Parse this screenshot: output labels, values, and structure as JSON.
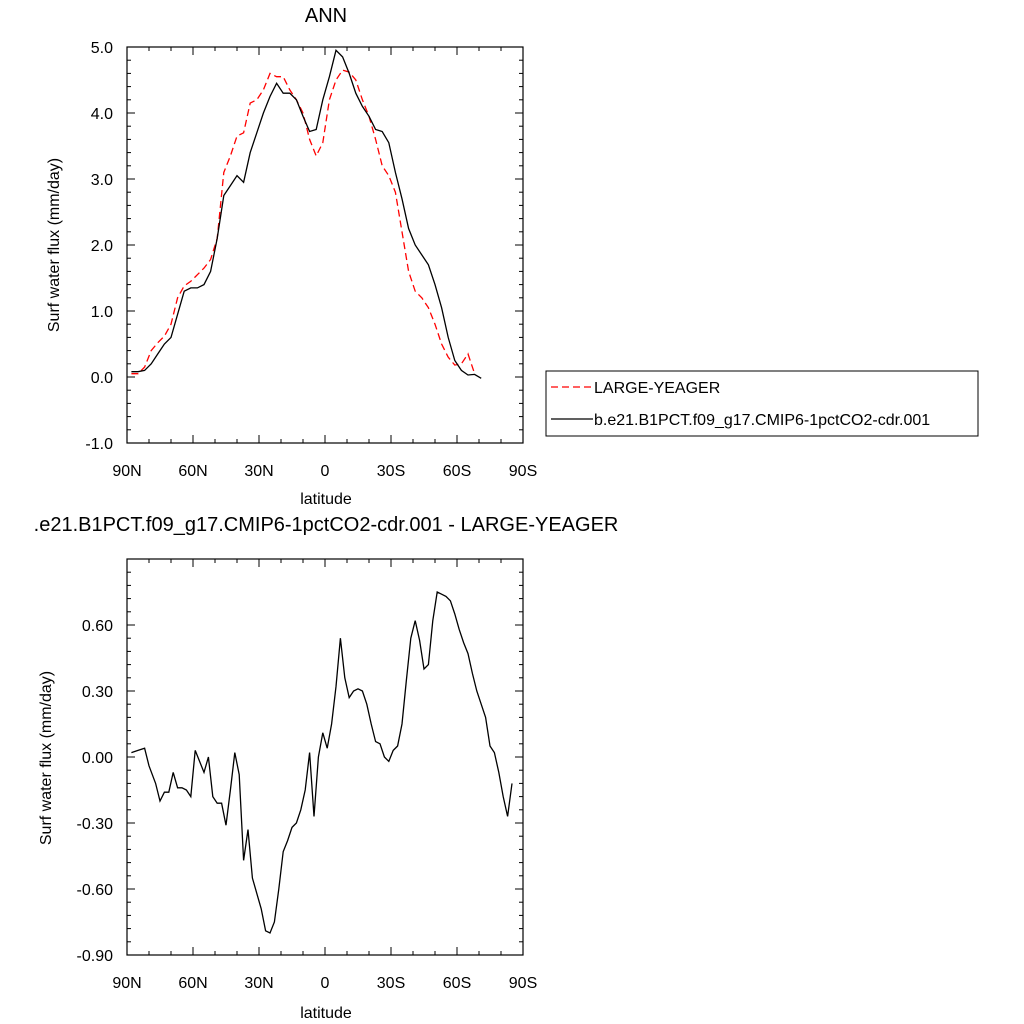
{
  "chart_data": [
    {
      "type": "line",
      "title": "ANN",
      "xlabel": "latitude",
      "ylabel": "Surf water flux (mm/day)",
      "xlim": [
        90,
        -90
      ],
      "ylim": [
        -1.0,
        5.0
      ],
      "x_ticks": [
        90,
        60,
        30,
        0,
        -30,
        -60,
        -90
      ],
      "x_tick_labels": [
        "90N",
        "60N",
        "30N",
        "0",
        "30S",
        "60S",
        "90S"
      ],
      "y_ticks": [
        -1.0,
        0.0,
        1.0,
        2.0,
        3.0,
        4.0,
        5.0
      ],
      "y_tick_labels": [
        "-1.0",
        "0.0",
        "1.0",
        "2.0",
        "3.0",
        "4.0",
        "5.0"
      ],
      "grid": false,
      "legend_position": "right",
      "series": [
        {
          "name": "LARGE-YEAGER",
          "color": "#ff0000",
          "dash": "dashed",
          "points": [
            [
              88,
              0.05
            ],
            [
              85,
              0.05
            ],
            [
              82,
              0.15
            ],
            [
              79,
              0.4
            ],
            [
              76,
              0.52
            ],
            [
              73,
              0.62
            ],
            [
              70,
              0.8
            ],
            [
              67,
              1.2
            ],
            [
              64,
              1.38
            ],
            [
              61,
              1.45
            ],
            [
              58,
              1.55
            ],
            [
              55,
              1.65
            ],
            [
              52,
              1.78
            ],
            [
              49,
              2.1
            ],
            [
              46,
              3.1
            ],
            [
              43,
              3.35
            ],
            [
              40,
              3.65
            ],
            [
              37,
              3.7
            ],
            [
              34,
              4.15
            ],
            [
              31,
              4.2
            ],
            [
              28,
              4.35
            ],
            [
              25,
              4.6
            ],
            [
              22,
              4.55
            ],
            [
              19,
              4.55
            ],
            [
              16,
              4.35
            ],
            [
              13,
              4.2
            ],
            [
              10,
              4.0
            ],
            [
              7,
              3.6
            ],
            [
              4,
              3.35
            ],
            [
              1,
              3.55
            ],
            [
              -2,
              4.2
            ],
            [
              -5,
              4.5
            ],
            [
              -8,
              4.65
            ],
            [
              -11,
              4.62
            ],
            [
              -14,
              4.5
            ],
            [
              -17,
              4.2
            ],
            [
              -20,
              3.95
            ],
            [
              -23,
              3.6
            ],
            [
              -26,
              3.2
            ],
            [
              -29,
              3.05
            ],
            [
              -32,
              2.8
            ],
            [
              -35,
              2.2
            ],
            [
              -38,
              1.6
            ],
            [
              -41,
              1.3
            ],
            [
              -44,
              1.2
            ],
            [
              -47,
              1.05
            ],
            [
              -50,
              0.8
            ],
            [
              -53,
              0.5
            ],
            [
              -56,
              0.3
            ],
            [
              -59,
              0.18
            ],
            [
              -62,
              0.2
            ],
            [
              -65,
              0.35
            ],
            [
              -68,
              0.05
            ]
          ]
        },
        {
          "name": "b.e21.B1PCT.f09_g17.CMIP6-1pctCO2-cdr.001",
          "color": "#000000",
          "dash": "solid",
          "points": [
            [
              88,
              0.08
            ],
            [
              85,
              0.08
            ],
            [
              82,
              0.1
            ],
            [
              79,
              0.2
            ],
            [
              76,
              0.35
            ],
            [
              73,
              0.5
            ],
            [
              70,
              0.6
            ],
            [
              67,
              0.95
            ],
            [
              64,
              1.3
            ],
            [
              61,
              1.35
            ],
            [
              58,
              1.35
            ],
            [
              55,
              1.4
            ],
            [
              52,
              1.6
            ],
            [
              49,
              2.1
            ],
            [
              46,
              2.75
            ],
            [
              43,
              2.9
            ],
            [
              40,
              3.05
            ],
            [
              37,
              2.95
            ],
            [
              34,
              3.4
            ],
            [
              31,
              3.7
            ],
            [
              28,
              4.0
            ],
            [
              25,
              4.25
            ],
            [
              22,
              4.45
            ],
            [
              19,
              4.3
            ],
            [
              16,
              4.3
            ],
            [
              13,
              4.2
            ],
            [
              10,
              3.95
            ],
            [
              7,
              3.72
            ],
            [
              4,
              3.75
            ],
            [
              1,
              4.2
            ],
            [
              -2,
              4.55
            ],
            [
              -5,
              4.95
            ],
            [
              -8,
              4.85
            ],
            [
              -11,
              4.6
            ],
            [
              -14,
              4.3
            ],
            [
              -17,
              4.1
            ],
            [
              -20,
              3.95
            ],
            [
              -23,
              3.75
            ],
            [
              -26,
              3.72
            ],
            [
              -29,
              3.55
            ],
            [
              -32,
              3.1
            ],
            [
              -35,
              2.7
            ],
            [
              -38,
              2.25
            ],
            [
              -41,
              2.0
            ],
            [
              -44,
              1.85
            ],
            [
              -47,
              1.7
            ],
            [
              -50,
              1.4
            ],
            [
              -53,
              1.05
            ],
            [
              -56,
              0.6
            ],
            [
              -59,
              0.25
            ],
            [
              -62,
              0.1
            ],
            [
              -65,
              0.03
            ],
            [
              -68,
              0.04
            ],
            [
              -71,
              -0.02
            ]
          ]
        }
      ]
    },
    {
      "type": "line",
      "title": ".e21.B1PCT.f09_g17.CMIP6-1pctCO2-cdr.001 - LARGE-YEAGER",
      "xlabel": "latitude",
      "ylabel": "Surf water flux (mm/day)",
      "xlim": [
        90,
        -90
      ],
      "ylim": [
        -0.9,
        0.9
      ],
      "x_ticks": [
        90,
        60,
        30,
        0,
        -30,
        -60,
        -90
      ],
      "x_tick_labels": [
        "90N",
        "60N",
        "30N",
        "0",
        "30S",
        "60S",
        "90S"
      ],
      "y_ticks": [
        -0.9,
        -0.6,
        -0.3,
        0.0,
        0.3,
        0.6
      ],
      "y_tick_labels": [
        "-0.90",
        "-0.60",
        "-0.30",
        "0.00",
        "0.30",
        "0.60"
      ],
      "grid": false,
      "series": [
        {
          "color": "#000000",
          "dash": "solid",
          "points": [
            [
              88,
              0.02
            ],
            [
              85,
              0.03
            ],
            [
              82,
              0.04
            ],
            [
              80,
              -0.04
            ],
            [
              77,
              -0.12
            ],
            [
              75,
              -0.2
            ],
            [
              73,
              -0.16
            ],
            [
              71,
              -0.16
            ],
            [
              69,
              -0.07
            ],
            [
              67,
              -0.14
            ],
            [
              65,
              -0.14
            ],
            [
              63,
              -0.15
            ],
            [
              61,
              -0.18
            ],
            [
              59,
              0.03
            ],
            [
              57,
              -0.02
            ],
            [
              55,
              -0.07
            ],
            [
              53,
              0.0
            ],
            [
              51,
              -0.18
            ],
            [
              49,
              -0.21
            ],
            [
              47,
              -0.21
            ],
            [
              45,
              -0.31
            ],
            [
              43,
              -0.15
            ],
            [
              41,
              0.02
            ],
            [
              39,
              -0.08
            ],
            [
              37,
              -0.47
            ],
            [
              35,
              -0.33
            ],
            [
              33,
              -0.55
            ],
            [
              31,
              -0.62
            ],
            [
              29,
              -0.69
            ],
            [
              27,
              -0.79
            ],
            [
              25,
              -0.8
            ],
            [
              23,
              -0.75
            ],
            [
              21,
              -0.6
            ],
            [
              19,
              -0.43
            ],
            [
              17,
              -0.38
            ],
            [
              15,
              -0.32
            ],
            [
              13,
              -0.3
            ],
            [
              11,
              -0.24
            ],
            [
              9,
              -0.15
            ],
            [
              7,
              0.02
            ],
            [
              5,
              -0.27
            ],
            [
              3,
              0.0
            ],
            [
              1,
              0.11
            ],
            [
              -1,
              0.04
            ],
            [
              -3,
              0.15
            ],
            [
              -5,
              0.32
            ],
            [
              -7,
              0.54
            ],
            [
              -9,
              0.36
            ],
            [
              -11,
              0.27
            ],
            [
              -13,
              0.3
            ],
            [
              -15,
              0.31
            ],
            [
              -17,
              0.3
            ],
            [
              -19,
              0.24
            ],
            [
              -21,
              0.15
            ],
            [
              -23,
              0.07
            ],
            [
              -25,
              0.06
            ],
            [
              -27,
              0.0
            ],
            [
              -29,
              -0.02
            ],
            [
              -31,
              0.03
            ],
            [
              -33,
              0.05
            ],
            [
              -35,
              0.15
            ],
            [
              -37,
              0.35
            ],
            [
              -39,
              0.54
            ],
            [
              -41,
              0.62
            ],
            [
              -43,
              0.53
            ],
            [
              -45,
              0.4
            ],
            [
              -47,
              0.42
            ],
            [
              -49,
              0.62
            ],
            [
              -51,
              0.75
            ],
            [
              -53,
              0.74
            ],
            [
              -55,
              0.73
            ],
            [
              -57,
              0.71
            ],
            [
              -59,
              0.65
            ],
            [
              -61,
              0.58
            ],
            [
              -63,
              0.52
            ],
            [
              -65,
              0.47
            ],
            [
              -67,
              0.38
            ],
            [
              -69,
              0.3
            ],
            [
              -71,
              0.24
            ],
            [
              -73,
              0.18
            ],
            [
              -75,
              0.05
            ],
            [
              -77,
              0.02
            ],
            [
              -79,
              -0.07
            ],
            [
              -81,
              -0.18
            ],
            [
              -83,
              -0.27
            ],
            [
              -85,
              -0.12
            ]
          ]
        }
      ]
    }
  ]
}
